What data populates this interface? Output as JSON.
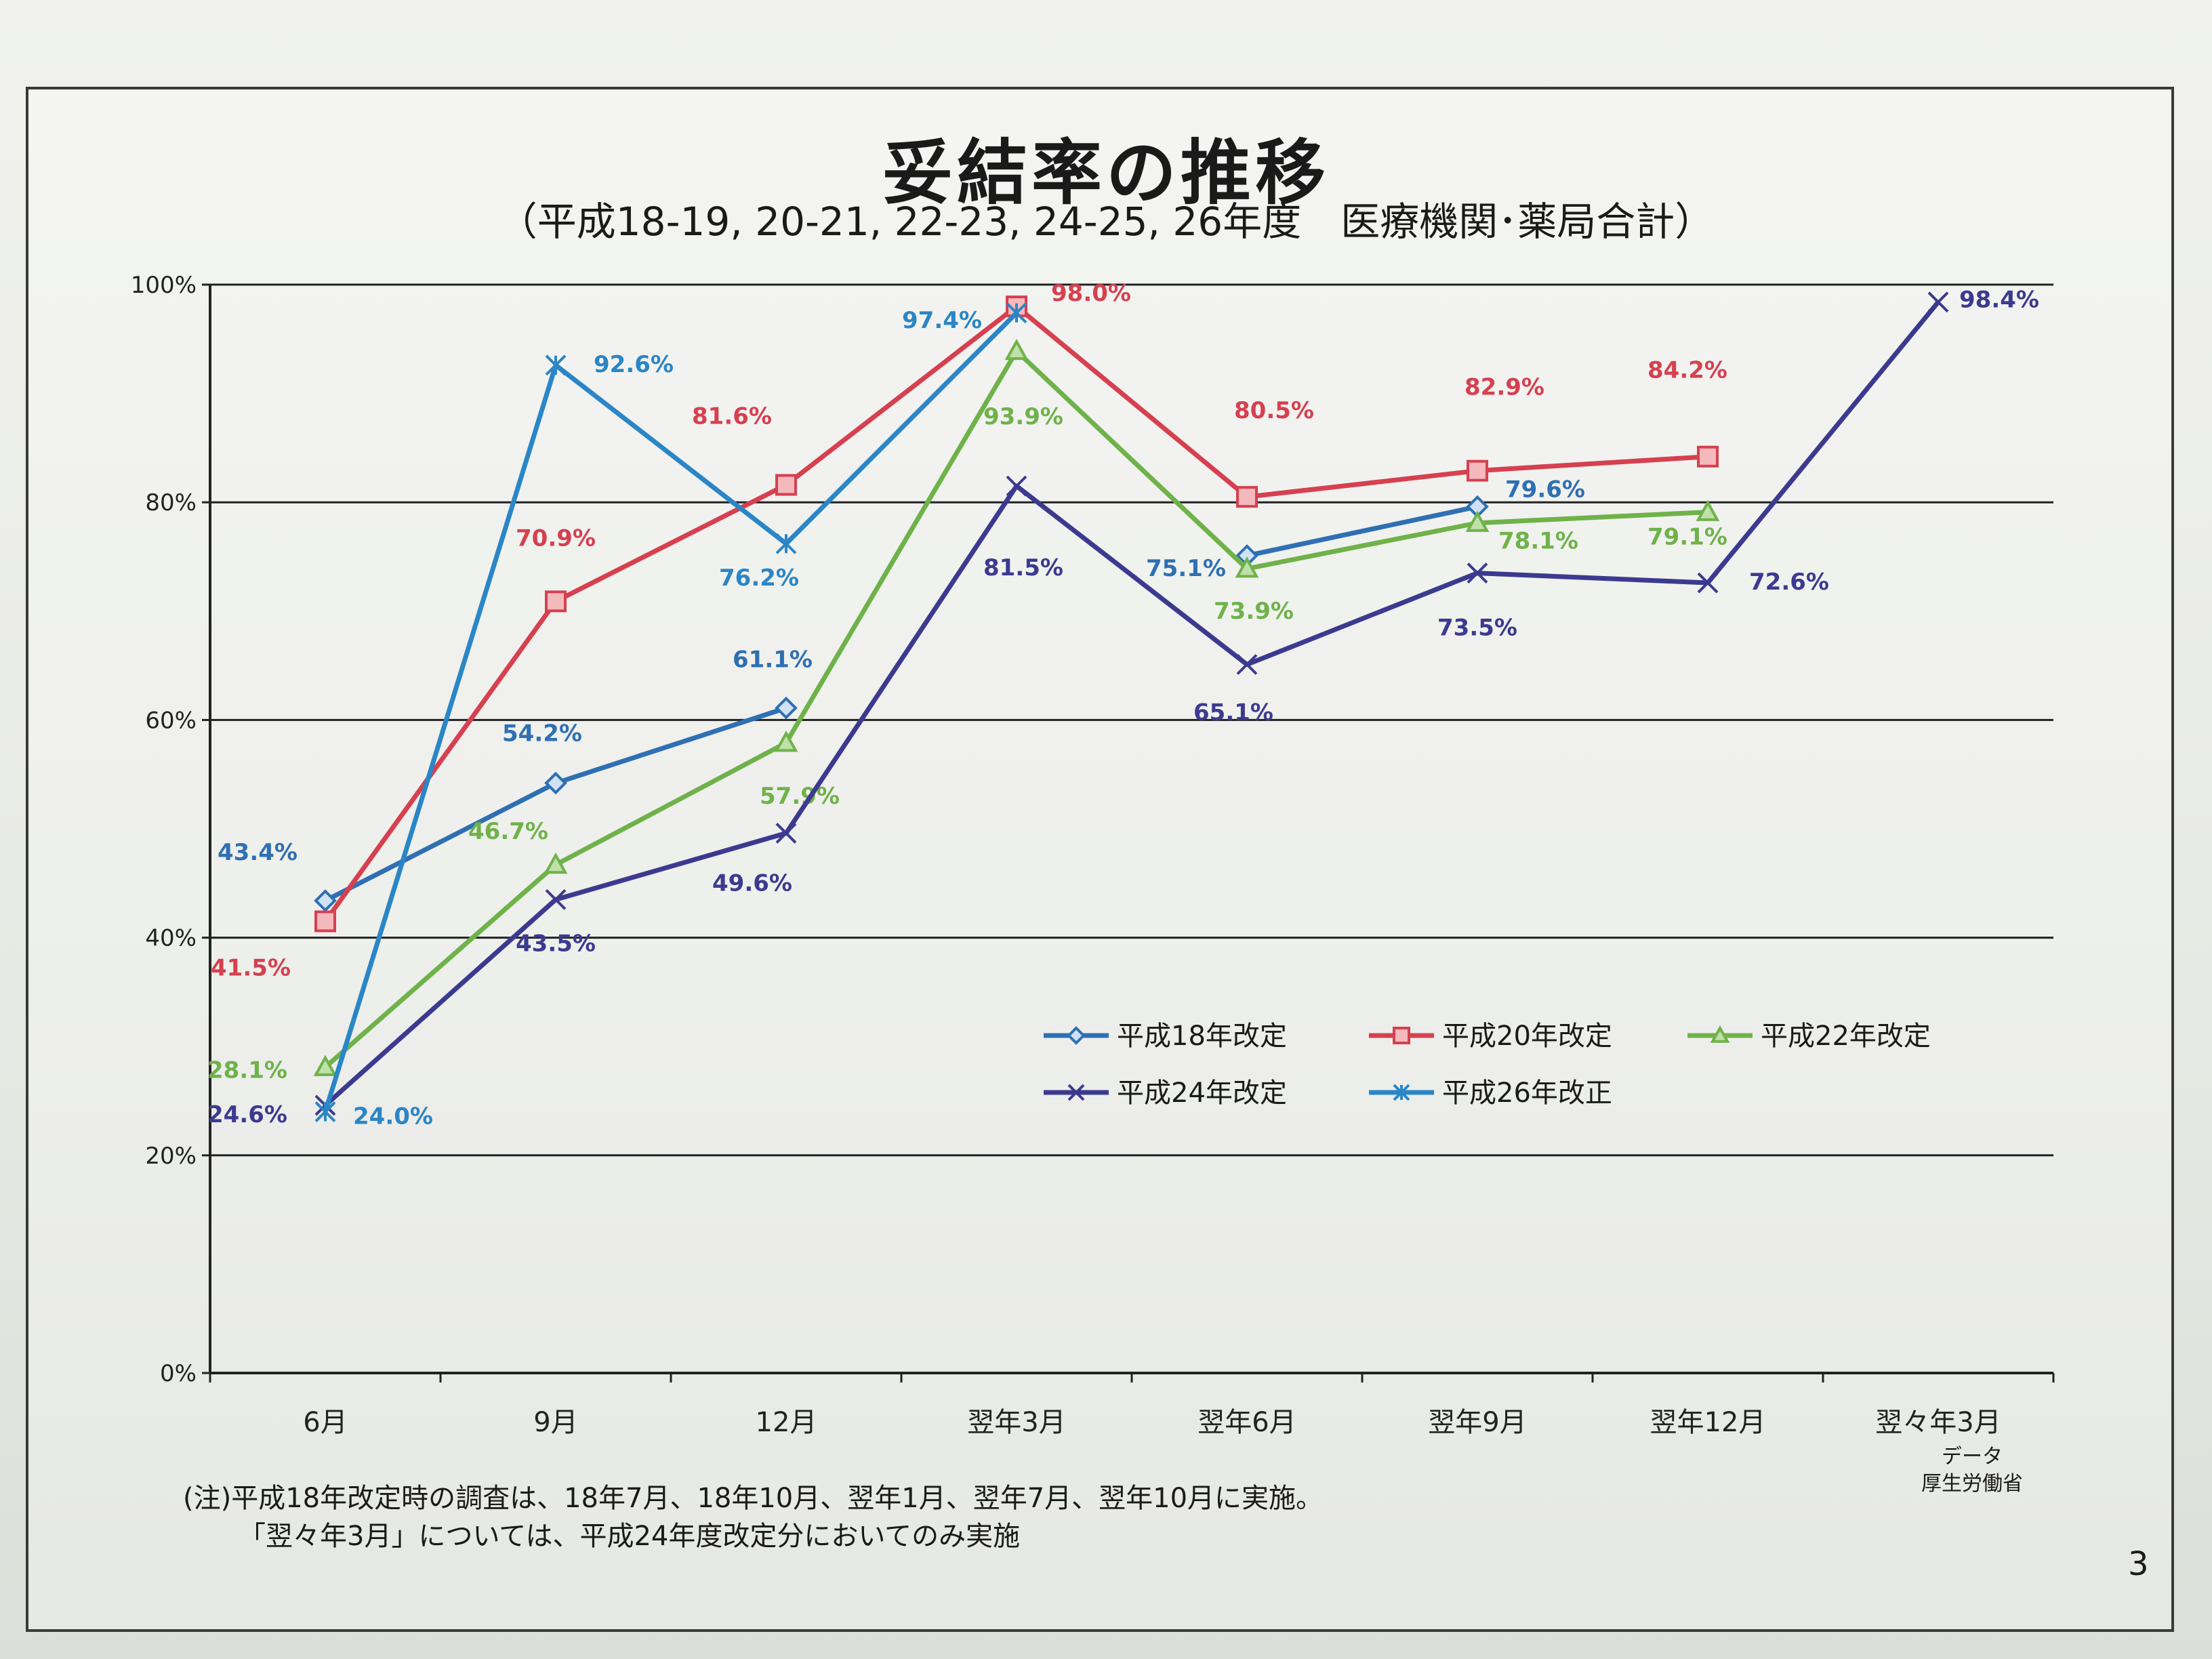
{
  "page": {
    "title": "妥結率の推移",
    "subtitle": "（平成18-19, 20-21, 22-23, 24-25, 26年度　医療機関･薬局合計）",
    "note_line1": "(注)平成18年改定時の調査は、18年7月、18年10月、翌年1月、翌年7月、翌年10月に実施。",
    "note_line2": "「翌々年3月」については、平成24年度改定分においてのみ実施",
    "source_line1": "データ",
    "source_line2": "厚生労働省",
    "page_number": "3"
  },
  "chart_data": {
    "type": "line",
    "title": "妥結率の推移",
    "subtitle": "（平成18-19, 20-21, 22-23, 24-25, 26年度　医療機関･薬局合計）",
    "categories": [
      "6月",
      "9月",
      "12月",
      "翌年3月",
      "翌年6月",
      "翌年9月",
      "翌年12月",
      "翌々年3月"
    ],
    "y_ticks": [
      "0%",
      "20%",
      "40%",
      "60%",
      "80%",
      "100%"
    ],
    "ylim": [
      0,
      100
    ],
    "grid": true,
    "legend_position": "lower-right inside plot",
    "series": [
      {
        "name": "平成18年改定",
        "color": "#2f6fb3",
        "marker": "diamond",
        "values": [
          43.4,
          54.2,
          61.1,
          null,
          75.1,
          79.6,
          null,
          null
        ],
        "labels": [
          "43.4%",
          "54.2%",
          "61.1%",
          null,
          "75.1%",
          "79.6%",
          null,
          null
        ]
      },
      {
        "name": "平成20年改定",
        "color": "#d6404f",
        "marker": "square",
        "values": [
          41.5,
          70.9,
          81.6,
          98.0,
          80.5,
          82.9,
          84.2,
          null
        ],
        "labels": [
          "41.5%",
          "70.9%",
          "81.6%",
          "98.0%",
          "80.5%",
          "82.9%",
          "84.2%",
          null
        ]
      },
      {
        "name": "平成22年改定",
        "color": "#6fb24a",
        "marker": "triangle",
        "values": [
          28.1,
          46.7,
          57.9,
          93.9,
          73.9,
          78.1,
          79.1,
          null
        ],
        "labels": [
          "28.1%",
          "46.7%",
          "57.9%",
          "93.9%",
          "73.9%",
          "78.1%",
          "79.1%",
          null
        ]
      },
      {
        "name": "平成24年改定",
        "color": "#3c3a8f",
        "marker": "x",
        "values": [
          24.6,
          43.5,
          49.6,
          81.5,
          65.1,
          73.5,
          72.6,
          98.4
        ],
        "labels": [
          "24.6%",
          "43.5%",
          "49.6%",
          "81.5%",
          "65.1%",
          "73.5%",
          "72.6%",
          "98.4%"
        ]
      },
      {
        "name": "平成26年改正",
        "color": "#2a86c6",
        "marker": "asterisk",
        "values": [
          24.0,
          92.6,
          76.2,
          97.4,
          null,
          null,
          null,
          null
        ],
        "labels": [
          "24.0%",
          "92.6%",
          "76.2%",
          "97.4%",
          null,
          null,
          null,
          null
        ]
      }
    ]
  }
}
